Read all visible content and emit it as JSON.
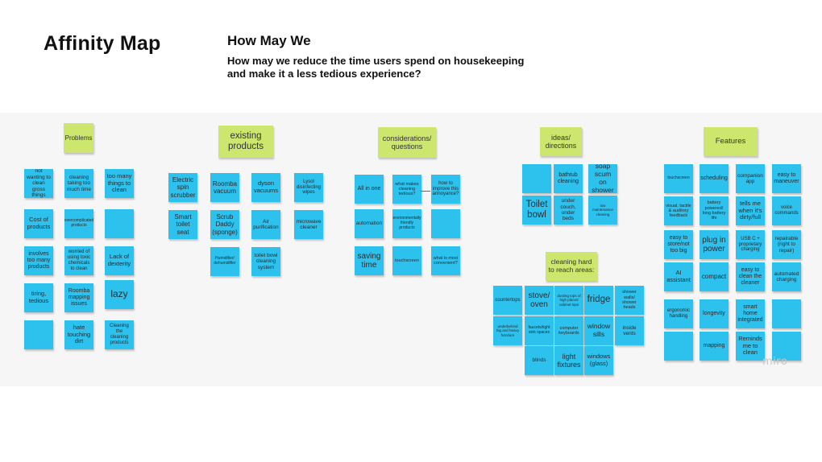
{
  "title": "Affinity Map",
  "hmw": {
    "heading": "How May We",
    "question": "How may we reduce the time users spend on housekeeping and make it a less tedious experience?"
  },
  "watermark": "miro",
  "colors": {
    "note": "#2dc1ee",
    "header_note": "#cde66e",
    "board": "#f6f6f6"
  },
  "groups": {
    "problems": {
      "header": "Problems",
      "notes": [
        "not wanting to clean gross things",
        "cleaning taking too much time",
        "too many things to clean",
        "Cost of products",
        "overcomplicated products",
        "",
        "involves too many products",
        "worried of using toxic chemicals to clean",
        "Lack of dexterity",
        "tiring, tedious",
        "Roomba mapping issues",
        "lazy",
        "",
        "hate touching dirt",
        "Cleaning the cleaning products"
      ]
    },
    "existing": {
      "header": "existing products",
      "notes": [
        "Electric spin scrubber",
        "Roomba vacuum",
        "dyson vacuums",
        "Lysol disinfecting wipes",
        "Smart toilet seat",
        "Scrub Daddy (sponge)",
        "Air purification",
        "microwave cleaner",
        "Humidifier/ dehumidifier",
        "toilet bowl cleaning system"
      ]
    },
    "considerations": {
      "header": "considerations/ questions",
      "notes": [
        "All in one",
        "what makes cleaning tedious?",
        "how to improve this annoyance?",
        "automation",
        "environmentally friendly products",
        "",
        "saving time",
        "touchscreen",
        "what is most convenient?"
      ]
    },
    "ideas": {
      "header": "ideas/ directions",
      "notes": [
        "",
        "bathtub cleaning",
        "soap scum on shower",
        "Toilet bowl",
        "under couch, under beds",
        "low maintenance cleaning"
      ]
    },
    "hard_to_reach": {
      "header": "cleaning hard to reach areas:",
      "notes": [
        "countertops",
        "stove/ oven",
        "dusting tops of high placed cabinet tops",
        "fridge",
        "shower walls/ shower heads",
        "underbehind big and heavy furniture",
        "faucets/tight sink spaces",
        "computer keyboards",
        "window sills",
        "inside vents",
        "blinds",
        "light fixtures",
        "windows (glass)"
      ]
    },
    "features": {
      "header": "Features",
      "notes": [
        "touchscreen",
        "scheduling",
        "companion app",
        "easy to maneuver",
        "visual, tactile & auditory feedback",
        "battery powered/ long battery life",
        "tells me when it's dirty/full",
        "voice commands",
        "easy to store/not too big",
        "plug in power",
        "USB C + proprietary charging",
        "repairable (right to repair)",
        "AI assistant",
        "compact",
        "easy to clean the cleaner",
        "automated charging",
        "ergonomic handling",
        "longevity",
        "smart home integrated",
        "",
        "",
        "mapping",
        "Reminds me to clean",
        ""
      ]
    }
  }
}
